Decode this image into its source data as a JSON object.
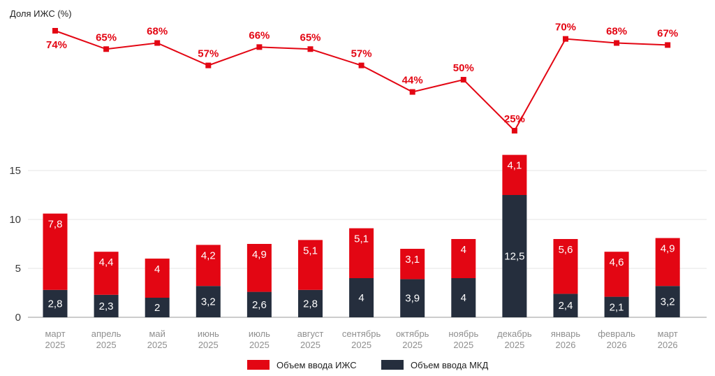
{
  "chart_data": {
    "type": "bar",
    "stacked": true,
    "share_title": "Доля ИЖС (%)",
    "categories": [
      [
        "март",
        "2025"
      ],
      [
        "апрель",
        "2025"
      ],
      [
        "май",
        "2025"
      ],
      [
        "июнь",
        "2025"
      ],
      [
        "июль",
        "2025"
      ],
      [
        "август",
        "2025"
      ],
      [
        "сентябрь",
        "2025"
      ],
      [
        "октябрь",
        "2025"
      ],
      [
        "ноябрь",
        "2025"
      ],
      [
        "декабрь",
        "2025"
      ],
      [
        "январь",
        "2026"
      ],
      [
        "февраль",
        "2026"
      ],
      [
        "март",
        "2026"
      ]
    ],
    "series": [
      {
        "name": "Объем ввода МКД",
        "color": "#252e3d",
        "values": [
          2.8,
          2.3,
          2,
          3.2,
          2.6,
          2.8,
          4,
          3.9,
          4,
          12.5,
          2.4,
          2.1,
          3.2
        ],
        "labels": [
          "2,8",
          "2,3",
          "2",
          "3,2",
          "2,6",
          "2,8",
          "4",
          "3,9",
          "4",
          "12,5",
          "2,4",
          "2,1",
          "3,2"
        ]
      },
      {
        "name": "Объем ввода ИЖС",
        "color": "#e30613",
        "values": [
          7.8,
          4.4,
          4,
          4.2,
          4.9,
          5.1,
          5.1,
          3.1,
          4,
          4.1,
          5.6,
          4.6,
          4.9
        ],
        "labels": [
          "7,8",
          "4,4",
          "4",
          "4,2",
          "4,9",
          "5,1",
          "5,1",
          "3,1",
          "4",
          "4,1",
          "5,6",
          "4,6",
          "4,9"
        ]
      }
    ],
    "ylim": [
      0,
      15
    ],
    "yticks": [
      0,
      5,
      10,
      15
    ],
    "grid": true,
    "legend": "bottom-center",
    "share_line": {
      "color": "#e30613",
      "values": [
        74,
        65,
        68,
        57,
        66,
        65,
        57,
        44,
        50,
        25,
        70,
        68,
        67
      ],
      "labels": [
        "74%",
        "65%",
        "68%",
        "57%",
        "66%",
        "65%",
        "57%",
        "44%",
        "50%",
        "25%",
        "70%",
        "68%",
        "67%"
      ]
    }
  }
}
